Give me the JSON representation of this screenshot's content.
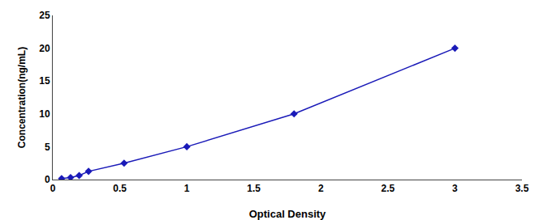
{
  "chart_data": {
    "type": "line",
    "x": [
      0.066,
      0.133,
      0.197,
      0.267,
      0.532,
      1.0,
      1.8,
      3.0
    ],
    "values": [
      0.156,
      0.312,
      0.625,
      1.25,
      2.5,
      5.0,
      10.0,
      20.0
    ],
    "color": "#1a1ab8",
    "marker": "diamond",
    "line_style": "solid",
    "xlabel": "Optical Density",
    "ylabel": "Concentration(ng/mL)",
    "xlim": [
      0,
      3.5
    ],
    "ylim": [
      0,
      25
    ],
    "xticks": [
      0,
      0.5,
      1,
      1.5,
      2,
      2.5,
      3,
      3.5
    ],
    "yticks": [
      0,
      5,
      10,
      15,
      20,
      25
    ],
    "grid": false
  }
}
